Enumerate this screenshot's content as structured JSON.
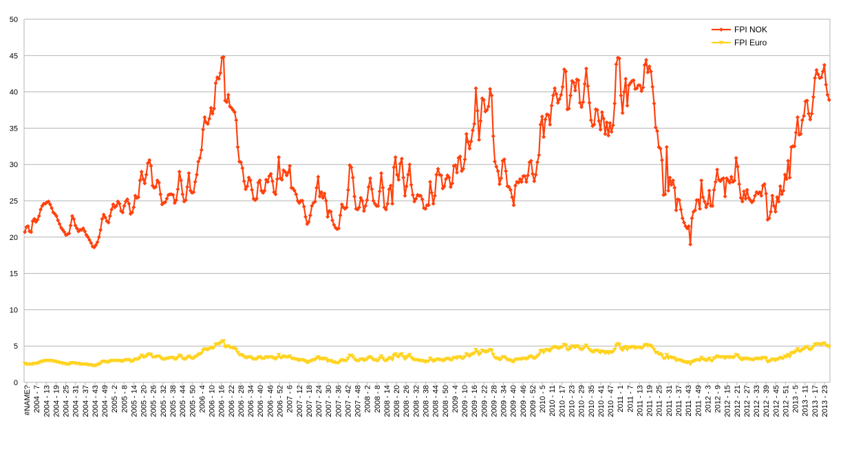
{
  "chart_data": {
    "type": "line",
    "title": "",
    "xlabel": "",
    "ylabel": "",
    "ylim": [
      0,
      50
    ],
    "yticks": [
      0,
      5,
      10,
      15,
      20,
      25,
      30,
      35,
      40,
      45,
      50
    ],
    "grid": true,
    "legend_position": "top-right",
    "xtick_labels": [
      "#NAME?",
      "2004 - 7",
      "2004 - 13",
      "2004 - 19",
      "2004 - 25",
      "2004 - 31",
      "2004 - 37",
      "2004 - 43",
      "2004 - 49",
      "2005 - 2",
      "2005 - 8",
      "2005 - 14",
      "2005 - 20",
      "2005 - 26",
      "2005 - 32",
      "2005 - 38",
      "2005 - 44",
      "2005 - 50",
      "2006 - 4",
      "2006 - 10",
      "2006 - 16",
      "2006 - 22",
      "2006 - 28",
      "2006 - 34",
      "2006 - 40",
      "2006 - 46",
      "2006 - 52",
      "2007 - 6",
      "2007 - 12",
      "2007 - 18",
      "2007 - 24",
      "2007 - 30",
      "2007 - 36",
      "2007 - 42",
      "2007 - 48",
      "2008 - 2",
      "2008 - 8",
      "2008 - 14",
      "2008 - 20",
      "2008 - 26",
      "2008 - 32",
      "2008 - 38",
      "2008 - 44",
      "2008 - 50",
      "2009 - 4",
      "2009 - 10",
      "2009 - 16",
      "2009 - 22",
      "2009 - 28",
      "2009 - 34",
      "2009 - 40",
      "2009 - 46",
      "2009 - 52",
      "2010 - 5",
      "2010 - 11",
      "2010 - 17",
      "2010 - 23",
      "2010 - 29",
      "2010 - 35",
      "2010 - 41",
      "2010 - 47",
      "2011 - 1",
      "2011 - 7",
      "2011 - 13",
      "2011 - 19",
      "2011 - 25",
      "2011 - 31",
      "2011 - 37",
      "2011 - 43",
      "2011 - 49",
      "2012 - 3",
      "2012 - 9",
      "2012 - 15",
      "2012 - 21",
      "2012 - 27",
      "2012 - 33",
      "2012 - 39",
      "2012 - 45",
      "2012 - 51",
      "2013 - 5",
      "2013 - 11",
      "2013 - 17",
      "2013 - 23"
    ],
    "series": [
      {
        "name": "FPI NOK",
        "color": "#ff420e",
        "marker": "diamond",
        "values": [
          20.7,
          21.4,
          21.5,
          20.8,
          20.7,
          22.2,
          22.5,
          22.1,
          22.4,
          22.9,
          23.8,
          24.3,
          24.6,
          24.6,
          24.8,
          24.9,
          24.5,
          24.0,
          23.4,
          23.2,
          22.9,
          22.3,
          21.8,
          21.3,
          21.0,
          20.7,
          20.3,
          20.4,
          20.5,
          21.6,
          22.9,
          22.5,
          21.6,
          21.2,
          20.8,
          21.0,
          21.0,
          21.2,
          20.8,
          20.3,
          20.0,
          19.6,
          19.2,
          18.7,
          18.6,
          18.9,
          19.3,
          20.0,
          21.0,
          22.5,
          23.1,
          22.7,
          22.2,
          22.0,
          22.9,
          23.8,
          24.5,
          24.1,
          24.3,
          24.9,
          24.6,
          23.6,
          23.4,
          24.3,
          24.9,
          25.2,
          24.6,
          23.2,
          23.4,
          24.1,
          25.7,
          25.4,
          25.5,
          27.8,
          29.0,
          28.0,
          27.4,
          28.6,
          30.2,
          30.6,
          29.8,
          27.1,
          26.8,
          26.9,
          27.8,
          27.5,
          25.9,
          24.5,
          24.7,
          24.8,
          25.3,
          25.8,
          25.9,
          25.9,
          25.8,
          24.7,
          25.1,
          26.6,
          29.0,
          27.8,
          25.9,
          24.9,
          25.1,
          26.9,
          28.8,
          26.4,
          26.1,
          26.2,
          27.6,
          28.6,
          30.4,
          30.9,
          32.0,
          34.8,
          36.5,
          35.8,
          35.6,
          36.3,
          37.8,
          37.0,
          37.7,
          41.2,
          42.0,
          41.8,
          42.6,
          44.7,
          44.8,
          38.8,
          38.6,
          39.6,
          38.0,
          37.8,
          37.5,
          37.2,
          36.1,
          32.4,
          30.4,
          30.3,
          29.5,
          27.7,
          26.6,
          27.0,
          28.2,
          27.8,
          26.5,
          25.3,
          25.1,
          25.3,
          27.5,
          27.8,
          26.4,
          26.1,
          26.4,
          27.9,
          27.6,
          28.4,
          28.7,
          27.7,
          26.2,
          25.9,
          28.0,
          31.0,
          28.1,
          27.9,
          29.2,
          29.0,
          28.5,
          28.9,
          29.8,
          26.8,
          26.7,
          26.4,
          25.9,
          25.0,
          24.7,
          25.0,
          25.0,
          24.2,
          22.8,
          21.8,
          22.1,
          23.0,
          24.3,
          24.7,
          24.9,
          26.8,
          28.3,
          25.6,
          26.2,
          25.4,
          26.0,
          25.0,
          22.8,
          23.6,
          23.5,
          22.3,
          21.7,
          21.3,
          21.1,
          21.2,
          23.0,
          24.5,
          24.1,
          23.9,
          24.1,
          26.5,
          29.9,
          29.6,
          28.2,
          25.6,
          23.9,
          23.8,
          24.1,
          25.4,
          25.0,
          23.6,
          24.3,
          25.1,
          26.9,
          28.1,
          26.6,
          25.0,
          24.6,
          24.3,
          24.3,
          26.3,
          28.8,
          26.8,
          24.1,
          23.8,
          24.6,
          26.6,
          27.1,
          24.6,
          29.6,
          31.0,
          28.6,
          27.9,
          30.1,
          30.8,
          28.2,
          25.7,
          27.0,
          28.6,
          30.0,
          27.2,
          25.8,
          24.9,
          25.3,
          25.8,
          25.7,
          25.7,
          25.2,
          24.0,
          23.9,
          24.4,
          24.4,
          27.6,
          26.1,
          24.6,
          25.7,
          28.6,
          29.4,
          28.6,
          28.5,
          26.7,
          27.0,
          28.0,
          28.5,
          28.2,
          26.9,
          27.4,
          29.8,
          29.9,
          28.9,
          30.9,
          31.1,
          29.1,
          29.4,
          30.7,
          34.2,
          33.1,
          32.2,
          33.2,
          34.7,
          35.6,
          40.5,
          37.4,
          33.4,
          36.0,
          39.1,
          38.9,
          37.3,
          37.5,
          38.0,
          40.4,
          39.5,
          33.9,
          30.4,
          29.7,
          29.1,
          27.3,
          28.1,
          30.5,
          30.7,
          29.1,
          27.0,
          26.9,
          26.5,
          25.5,
          24.4,
          27.1,
          27.6,
          27.5,
          28.0,
          27.6,
          28.4,
          28.4,
          27.6,
          28.5,
          30.3,
          30.5,
          28.7,
          27.7,
          28.6,
          30.3,
          31.3,
          35.5,
          36.6,
          33.8,
          36.2,
          36.9,
          36.8,
          35.5,
          38.1,
          39.5,
          40.5,
          39.7,
          38.5,
          39.0,
          39.6,
          40.7,
          43.1,
          42.8,
          37.6,
          37.7,
          39.5,
          41.5,
          41.3,
          40.2,
          41.7,
          41.6,
          38.5,
          37.9,
          38.6,
          41.1,
          43.2,
          40.8,
          38.5,
          36.1,
          35.3,
          35.5,
          37.6,
          37.5,
          36.0,
          34.8,
          37.2,
          36.3,
          34.2,
          35.8,
          34.0,
          35.7,
          34.5,
          35.4,
          38.4,
          43.8,
          44.7,
          44.6,
          39.5,
          37.1,
          40.0,
          41.8,
          38.1,
          40.9,
          41.2,
          41.5,
          41.6,
          40.4,
          40.5,
          40.9,
          40.9,
          40.1,
          40.6,
          43.7,
          44.4,
          42.7,
          43.5,
          42.8,
          40.7,
          38.4,
          35.1,
          34.6,
          32.4,
          32.2,
          30.6,
          25.8,
          25.9,
          32.4,
          26.4,
          28.2,
          27.2,
          27.8,
          26.8,
          23.7,
          25.2,
          25.1,
          23.8,
          22.6,
          22.0,
          21.5,
          21.2,
          21.5,
          19.0,
          22.6,
          23.5,
          23.7,
          25.1,
          25.1,
          23.9,
          27.8,
          25.5,
          24.9,
          24.1,
          24.6,
          26.4,
          24.3,
          24.3,
          26.5,
          27.6,
          29.3,
          27.9,
          27.7,
          28.0,
          28.1,
          25.6,
          28.1,
          27.8,
          27.5,
          28.3,
          27.6,
          27.8,
          30.9,
          29.7,
          27.3,
          25.4,
          24.9,
          26.3,
          25.3,
          26.5,
          25.4,
          25.1,
          24.8,
          25.0,
          25.7,
          26.2,
          26.0,
          26.2,
          25.7,
          27.1,
          27.3,
          26.0,
          22.4,
          22.6,
          23.5,
          25.7,
          24.3,
          23.5,
          25.5,
          24.9,
          27.0,
          25.9,
          26.4,
          28.6,
          28.0,
          30.5,
          28.2,
          32.4,
          32.5,
          32.5,
          34.4,
          36.5,
          34.1,
          34.2,
          36.1,
          36.7,
          38.7,
          38.8,
          37.0,
          36.2,
          37.0,
          39.3,
          41.9,
          43.0,
          42.4,
          41.9,
          42.0,
          42.8,
          43.7,
          41.0,
          39.6,
          38.9
        ]
      },
      {
        "name": "FPI Euro",
        "color": "#ffd320",
        "marker": "triangle",
        "values": [
          2.6,
          2.5,
          2.5,
          2.5,
          2.5,
          2.5,
          2.6,
          2.6,
          2.6,
          2.7,
          2.8,
          2.9,
          2.9,
          3.0,
          3.0,
          3.0,
          3.0,
          3.0,
          2.9,
          2.9,
          2.8,
          2.8,
          2.7,
          2.7,
          2.6,
          2.6,
          2.5,
          2.5,
          2.5,
          2.6,
          2.7,
          2.7,
          2.6,
          2.6,
          2.6,
          2.5,
          2.5,
          2.5,
          2.5,
          2.5,
          2.4,
          2.4,
          2.4,
          2.3,
          2.3,
          2.3,
          2.4,
          2.5,
          2.6,
          2.8,
          2.9,
          2.8,
          2.8,
          2.8,
          2.9,
          3.0,
          3.0,
          3.0,
          3.0,
          3.0,
          3.0,
          2.9,
          2.9,
          3.0,
          3.1,
          3.1,
          3.1,
          2.9,
          2.9,
          3.0,
          3.2,
          3.2,
          3.2,
          3.4,
          3.7,
          3.5,
          3.5,
          3.6,
          3.8,
          3.9,
          3.8,
          3.5,
          3.5,
          3.5,
          3.6,
          3.6,
          3.4,
          3.2,
          3.2,
          3.2,
          3.3,
          3.3,
          3.4,
          3.4,
          3.4,
          3.2,
          3.2,
          3.4,
          3.7,
          3.6,
          3.3,
          3.2,
          3.2,
          3.4,
          3.6,
          3.4,
          3.3,
          3.3,
          3.5,
          3.6,
          3.8,
          3.9,
          4.0,
          4.4,
          4.6,
          4.5,
          4.5,
          4.6,
          4.8,
          4.7,
          4.8,
          5.2,
          5.3,
          5.3,
          5.4,
          5.6,
          5.7,
          4.9,
          4.9,
          5.0,
          4.8,
          4.8,
          4.7,
          4.7,
          4.5,
          4.1,
          3.8,
          3.8,
          3.7,
          3.5,
          3.4,
          3.4,
          3.5,
          3.5,
          3.3,
          3.2,
          3.2,
          3.2,
          3.4,
          3.5,
          3.3,
          3.3,
          3.3,
          3.5,
          3.4,
          3.5,
          3.5,
          3.4,
          3.3,
          3.2,
          3.4,
          3.8,
          3.4,
          3.4,
          3.6,
          3.5,
          3.5,
          3.5,
          3.6,
          3.3,
          3.3,
          3.2,
          3.2,
          3.1,
          3.0,
          3.1,
          3.1,
          3.0,
          2.9,
          2.7,
          2.8,
          2.9,
          3.0,
          3.1,
          3.1,
          3.3,
          3.5,
          3.2,
          3.3,
          3.2,
          3.3,
          3.2,
          2.9,
          3.0,
          3.0,
          2.8,
          2.8,
          2.7,
          2.7,
          2.7,
          2.9,
          3.1,
          3.0,
          3.0,
          3.0,
          3.3,
          3.7,
          3.7,
          3.5,
          3.2,
          3.0,
          3.0,
          3.0,
          3.2,
          3.2,
          3.0,
          3.1,
          3.2,
          3.4,
          3.5,
          3.3,
          3.1,
          3.1,
          3.0,
          3.0,
          3.3,
          3.6,
          3.3,
          3.0,
          3.0,
          3.1,
          3.3,
          3.4,
          3.1,
          3.7,
          3.9,
          3.6,
          3.5,
          3.8,
          3.9,
          3.5,
          3.2,
          3.4,
          3.6,
          3.8,
          3.4,
          3.2,
          3.1,
          3.1,
          3.1,
          3.0,
          3.0,
          3.0,
          2.9,
          2.8,
          2.9,
          2.9,
          3.3,
          3.1,
          2.9,
          3.0,
          3.1,
          3.2,
          3.1,
          3.1,
          3.0,
          3.0,
          3.2,
          3.3,
          3.2,
          3.1,
          3.1,
          3.4,
          3.4,
          3.3,
          3.5,
          3.5,
          3.3,
          3.3,
          3.5,
          3.9,
          3.7,
          3.6,
          3.8,
          3.9,
          4.0,
          4.5,
          4.2,
          3.8,
          4.0,
          4.4,
          4.3,
          4.2,
          4.2,
          4.3,
          4.5,
          4.4,
          3.8,
          3.4,
          3.3,
          3.3,
          3.1,
          3.2,
          3.5,
          3.5,
          3.3,
          3.1,
          3.1,
          3.0,
          2.9,
          2.8,
          3.1,
          3.2,
          3.2,
          3.2,
          3.2,
          3.3,
          3.3,
          3.2,
          3.3,
          3.5,
          3.6,
          3.4,
          3.3,
          3.4,
          3.6,
          3.8,
          4.3,
          4.4,
          4.1,
          4.4,
          4.5,
          4.4,
          4.3,
          4.6,
          4.8,
          4.9,
          4.8,
          4.7,
          4.7,
          4.8,
          4.9,
          5.2,
          5.1,
          4.5,
          4.5,
          4.7,
          5.0,
          4.9,
          4.8,
          5.0,
          4.9,
          4.6,
          4.5,
          4.6,
          4.9,
          5.1,
          4.8,
          4.5,
          4.3,
          4.2,
          4.2,
          4.4,
          4.4,
          4.2,
          4.1,
          4.3,
          4.2,
          4.0,
          4.2,
          4.0,
          4.2,
          4.1,
          4.2,
          4.5,
          5.1,
          5.3,
          5.2,
          4.6,
          4.4,
          4.7,
          4.9,
          4.5,
          4.8,
          4.8,
          4.9,
          4.9,
          4.7,
          4.8,
          4.8,
          4.8,
          4.7,
          4.8,
          5.1,
          5.2,
          5.0,
          5.1,
          5.0,
          4.8,
          4.5,
          4.1,
          4.1,
          3.9,
          3.9,
          3.7,
          3.3,
          3.3,
          3.8,
          3.3,
          3.5,
          3.4,
          3.4,
          3.3,
          3.0,
          3.1,
          3.1,
          3.0,
          2.9,
          2.8,
          2.8,
          2.7,
          2.8,
          2.5,
          2.8,
          2.9,
          3.0,
          3.1,
          3.1,
          3.0,
          3.4,
          3.2,
          3.1,
          3.0,
          3.1,
          3.3,
          3.0,
          3.0,
          3.3,
          3.4,
          3.6,
          3.5,
          3.5,
          3.5,
          3.5,
          3.3,
          3.5,
          3.5,
          3.4,
          3.5,
          3.4,
          3.5,
          3.8,
          3.7,
          3.4,
          3.2,
          3.1,
          3.3,
          3.2,
          3.3,
          3.2,
          3.2,
          3.1,
          3.1,
          3.2,
          3.3,
          3.2,
          3.3,
          3.2,
          3.4,
          3.4,
          3.3,
          2.8,
          2.9,
          3.0,
          3.2,
          3.1,
          3.0,
          3.2,
          3.2,
          3.4,
          3.3,
          3.3,
          3.6,
          3.5,
          3.8,
          3.5,
          4.0,
          4.1,
          4.1,
          4.3,
          4.6,
          4.3,
          4.3,
          4.5,
          4.6,
          4.8,
          4.9,
          4.6,
          4.5,
          4.6,
          4.9,
          5.2,
          5.3,
          5.3,
          5.2,
          5.2,
          5.3,
          5.4,
          5.1,
          5.0,
          4.9
        ]
      }
    ]
  }
}
